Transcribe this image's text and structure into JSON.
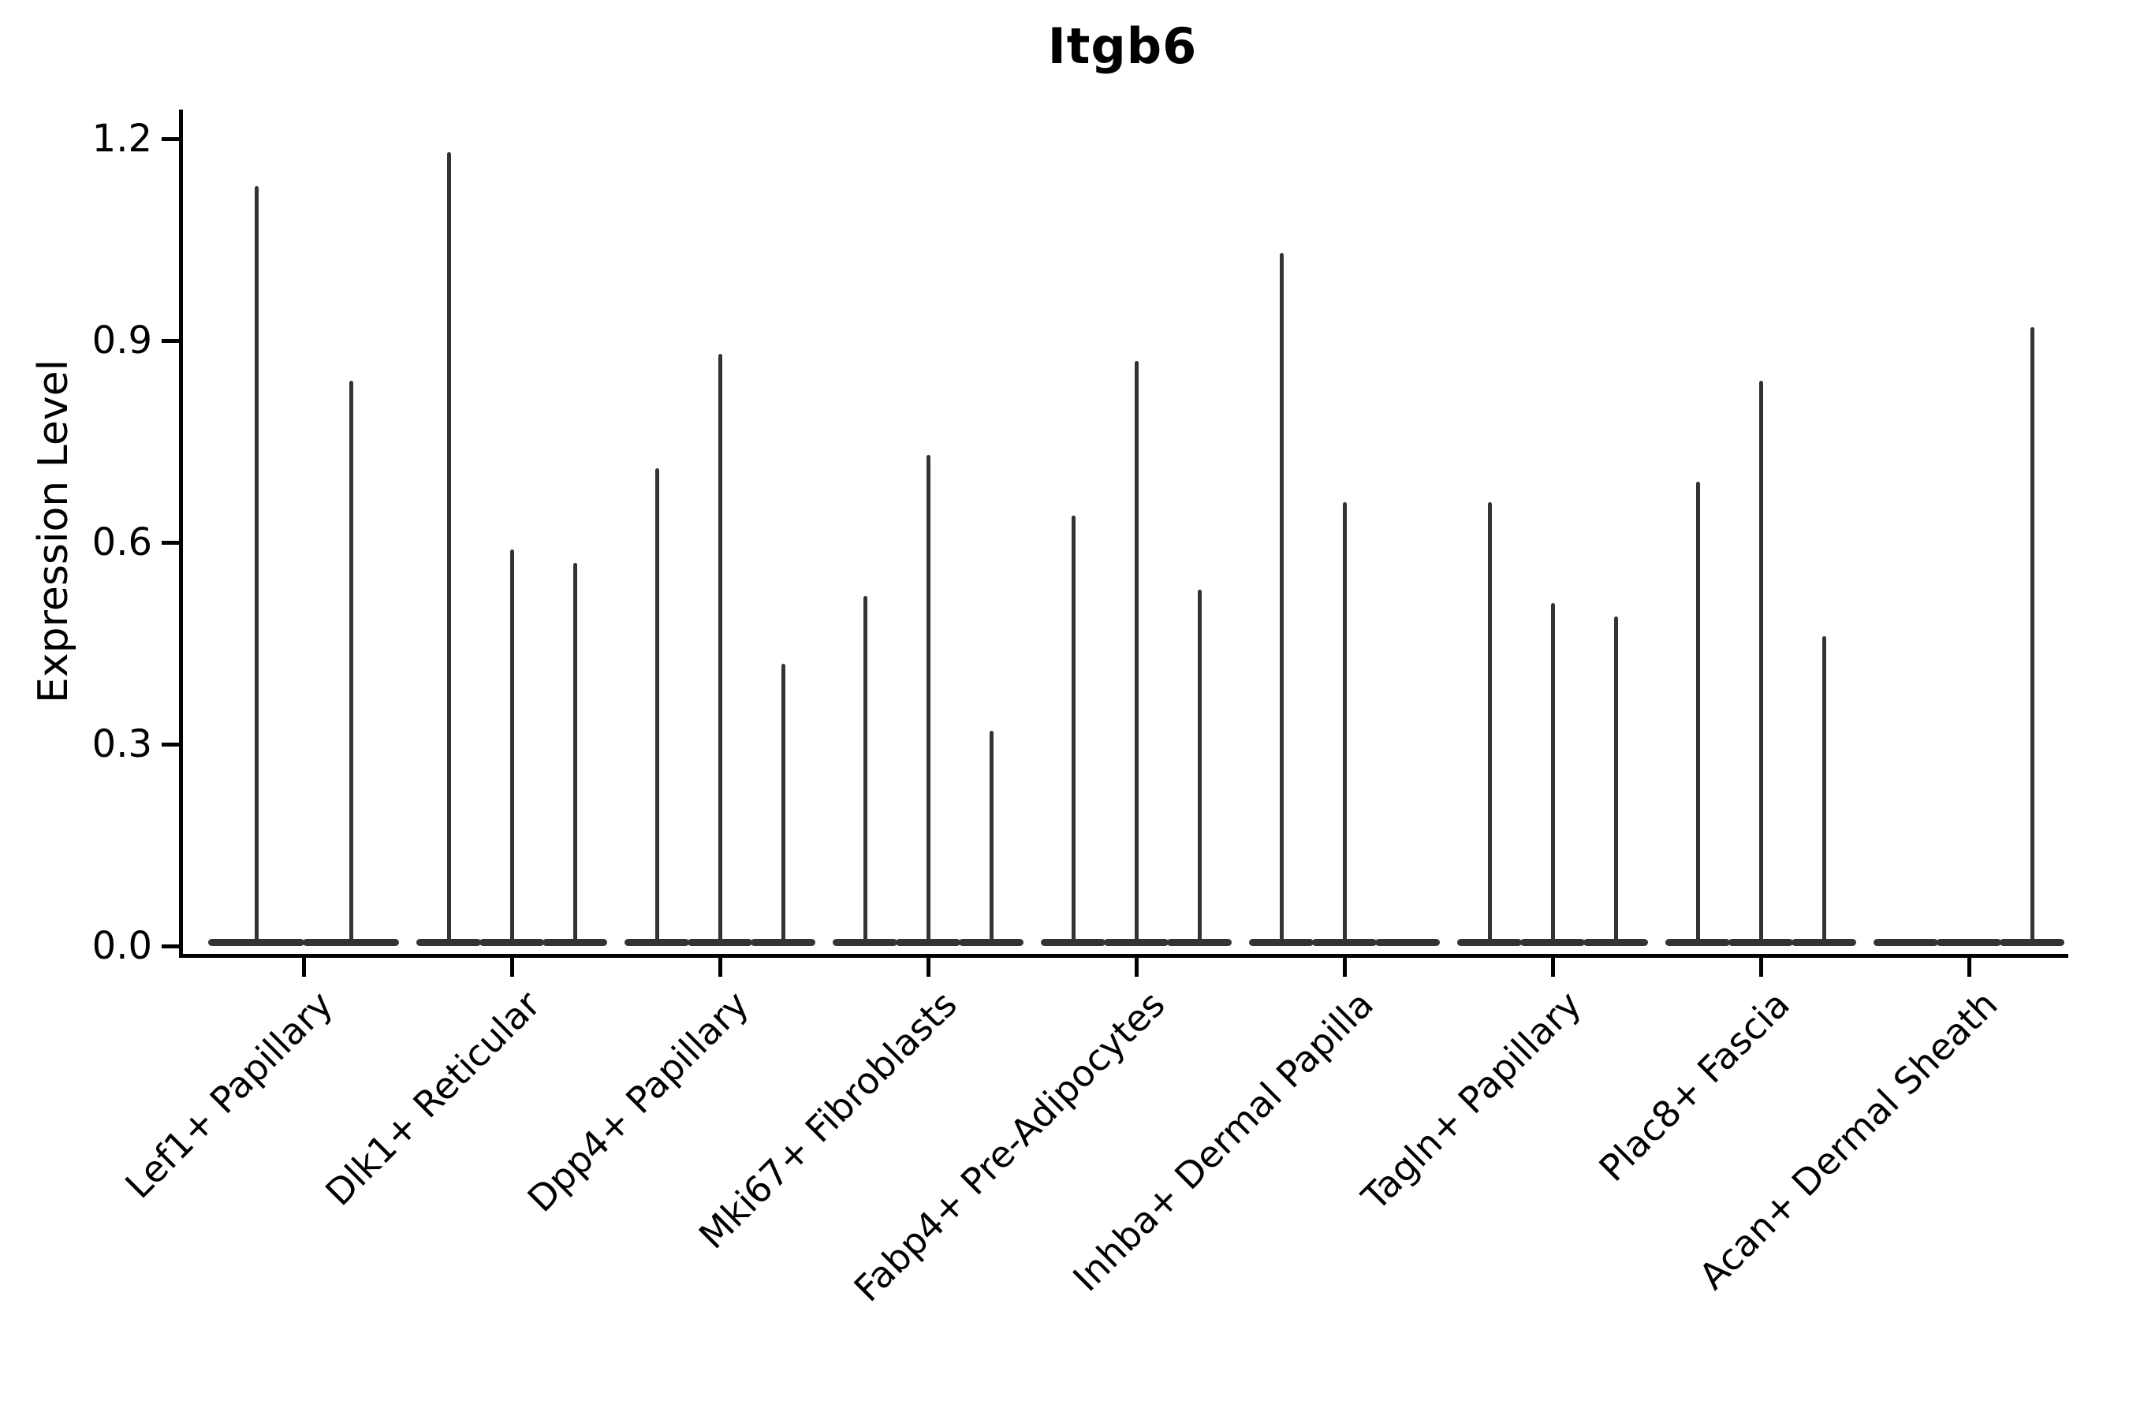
{
  "chart_data": {
    "type": "violin",
    "title": "Itgb6",
    "ylabel": "Expression Level",
    "xlabel": "",
    "yticks": [
      "0.0",
      "0.3",
      "0.6",
      "0.9",
      "1.2"
    ],
    "ylim": [
      0.0,
      1.2
    ],
    "grid": false,
    "legend": "none",
    "line_color": "#333333",
    "description": "Violin plot of Itgb6 expression; each category holds narrow violins flattened at 0 with thin spikes marking maximum expression. Spike heights (Expression Level) listed per violin; 0 means no spike (flat violin only).",
    "categories": [
      {
        "label": "Lef1+ Papillary",
        "violins": [
          1.13,
          0.84
        ]
      },
      {
        "label": "Dlk1+ Reticular",
        "violins": [
          1.18,
          0.59,
          0.57
        ]
      },
      {
        "label": "Dpp4+ Papillary",
        "violins": [
          0.71,
          0.88,
          0.42
        ]
      },
      {
        "label": "Mki67+ Fibroblasts",
        "violins": [
          0.52,
          0.73,
          0.32
        ]
      },
      {
        "label": "Fabp4+ Pre-Adipocytes",
        "violins": [
          0.64,
          0.87,
          0.53
        ]
      },
      {
        "label": "Inhba+ Dermal Papilla",
        "violins": [
          1.03,
          0.66,
          0
        ]
      },
      {
        "label": "Tagln+ Papillary",
        "violins": [
          0.66,
          0.51,
          0.49
        ]
      },
      {
        "label": "Plac8+ Fascia",
        "violins": [
          0.69,
          0.84,
          0.46
        ]
      },
      {
        "label": "Acan+ Dermal Sheath",
        "violins": [
          0,
          0,
          0.92
        ]
      }
    ]
  }
}
